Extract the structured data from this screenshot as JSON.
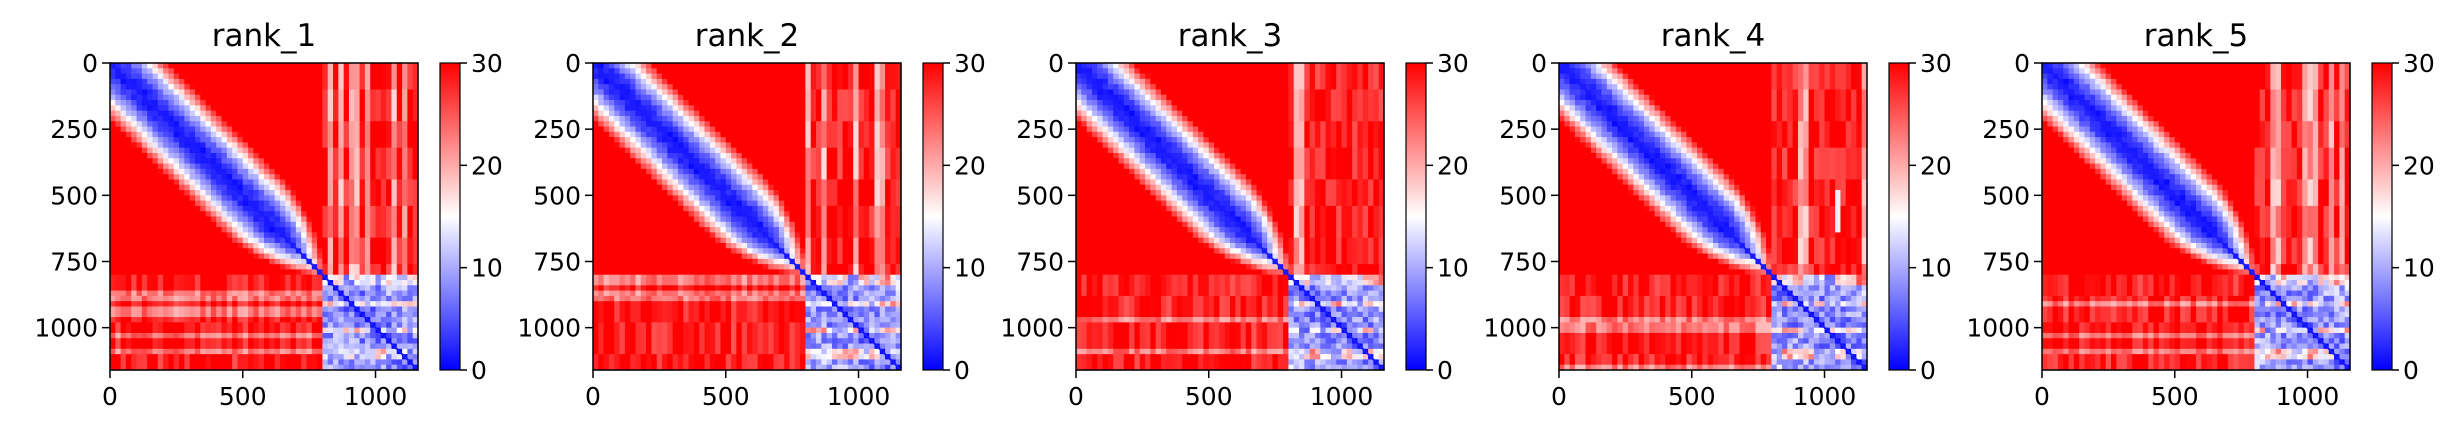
{
  "chart_data": [
    {
      "type": "heatmap",
      "title": "rank_1",
      "xlim": [
        0,
        1160
      ],
      "ylim": [
        1160,
        0
      ],
      "xticks": [
        0,
        500,
        1000
      ],
      "xtick_labels": [
        "0",
        "500",
        "1000"
      ],
      "yticks": [
        0,
        250,
        500,
        750,
        1000
      ],
      "ytick_labels": [
        "0",
        "250",
        "500",
        "750",
        "1000"
      ],
      "colorbar": {
        "cmap": "bwr",
        "vmin": 0,
        "vmax": 30,
        "ticks": [
          0,
          10,
          20,
          30
        ],
        "tick_labels": [
          "0",
          "10",
          "20",
          "30"
        ]
      },
      "block_boundary": 810,
      "matrix_size": 1160,
      "artifact_column": null
    },
    {
      "type": "heatmap",
      "title": "rank_2",
      "xlim": [
        0,
        1160
      ],
      "ylim": [
        1160,
        0
      ],
      "xticks": [
        0,
        500,
        1000
      ],
      "xtick_labels": [
        "0",
        "500",
        "1000"
      ],
      "yticks": [
        0,
        250,
        500,
        750,
        1000
      ],
      "ytick_labels": [
        "0",
        "250",
        "500",
        "750",
        "1000"
      ],
      "colorbar": {
        "cmap": "bwr",
        "vmin": 0,
        "vmax": 30,
        "ticks": [
          0,
          10,
          20,
          30
        ],
        "tick_labels": [
          "0",
          "10",
          "20",
          "30"
        ]
      },
      "block_boundary": 810,
      "matrix_size": 1160,
      "artifact_column": null
    },
    {
      "type": "heatmap",
      "title": "rank_3",
      "xlim": [
        0,
        1160
      ],
      "ylim": [
        1160,
        0
      ],
      "xticks": [
        0,
        500,
        1000
      ],
      "xtick_labels": [
        "0",
        "500",
        "1000"
      ],
      "yticks": [
        0,
        250,
        500,
        750,
        1000
      ],
      "ytick_labels": [
        "0",
        "250",
        "500",
        "750",
        "1000"
      ],
      "colorbar": {
        "cmap": "bwr",
        "vmin": 0,
        "vmax": 30,
        "ticks": [
          0,
          10,
          20,
          30
        ],
        "tick_labels": [
          "0",
          "10",
          "20",
          "30"
        ]
      },
      "block_boundary": 810,
      "matrix_size": 1160,
      "artifact_column": null
    },
    {
      "type": "heatmap",
      "title": "rank_4",
      "xlim": [
        0,
        1160
      ],
      "ylim": [
        1160,
        0
      ],
      "xticks": [
        0,
        500,
        1000
      ],
      "xtick_labels": [
        "0",
        "500",
        "1000"
      ],
      "yticks": [
        0,
        250,
        500,
        750,
        1000
      ],
      "ytick_labels": [
        "0",
        "250",
        "500",
        "750",
        "1000"
      ],
      "colorbar": {
        "cmap": "bwr",
        "vmin": 0,
        "vmax": 30,
        "ticks": [
          0,
          10,
          20,
          30
        ],
        "tick_labels": [
          "0",
          "10",
          "20",
          "30"
        ]
      },
      "block_boundary": 810,
      "matrix_size": 1160,
      "artifact_column": 1050
    },
    {
      "type": "heatmap",
      "title": "rank_5",
      "xlim": [
        0,
        1160
      ],
      "ylim": [
        1160,
        0
      ],
      "xticks": [
        0,
        500,
        1000
      ],
      "xtick_labels": [
        "0",
        "500",
        "1000"
      ],
      "yticks": [
        0,
        250,
        500,
        750,
        1000
      ],
      "ytick_labels": [
        "0",
        "250",
        "500",
        "750",
        "1000"
      ],
      "colorbar": {
        "cmap": "bwr",
        "vmin": 0,
        "vmax": 30,
        "ticks": [
          0,
          10,
          20,
          30
        ],
        "tick_labels": [
          "0",
          "10",
          "20",
          "30"
        ]
      },
      "block_boundary": 810,
      "matrix_size": 1160,
      "artifact_column": null
    }
  ]
}
